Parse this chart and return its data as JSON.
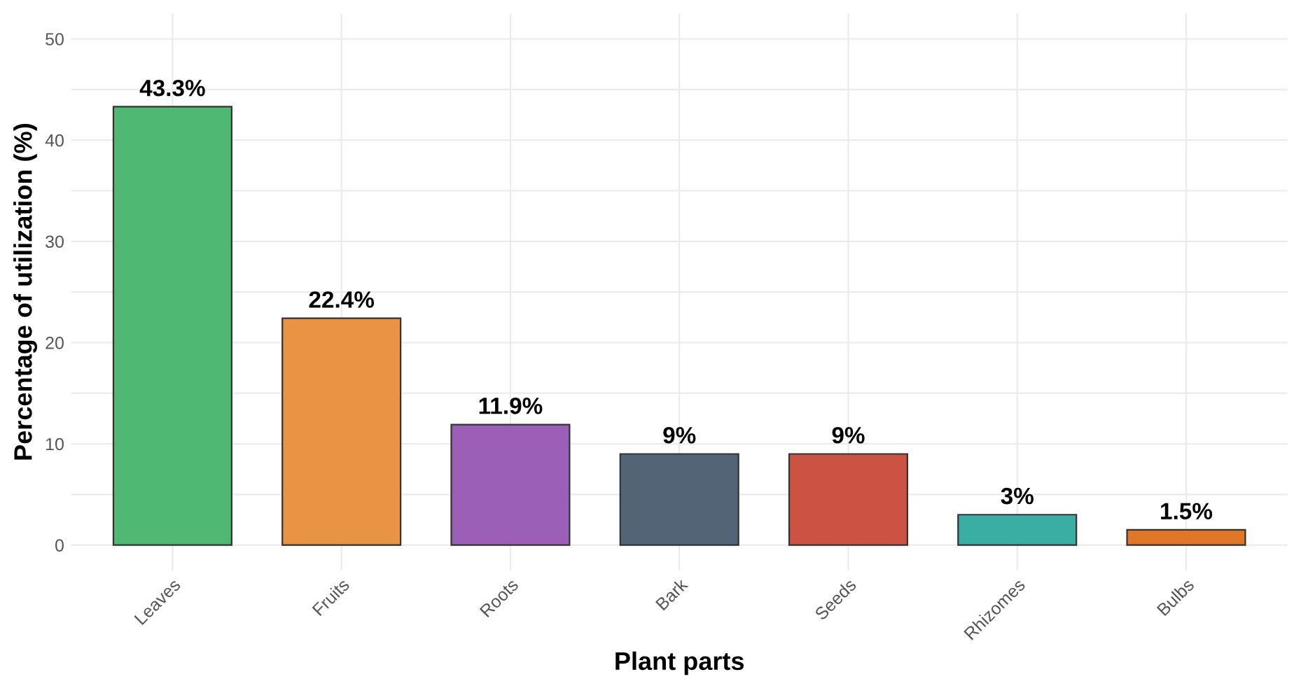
{
  "chart_data": {
    "type": "bar",
    "xlabel": "Plant parts",
    "ylabel": "Percentage of utilization (%)",
    "categories": [
      "Leaves",
      "Fruits",
      "Roots",
      "Bark",
      "Seeds",
      "Rhizomes",
      "Bulbs"
    ],
    "values": [
      43.3,
      22.4,
      11.9,
      9,
      9,
      3,
      1.5
    ],
    "value_labels": [
      "43.3%",
      "22.4%",
      "11.9%",
      "9%",
      "9%",
      "3%",
      "1.5%"
    ],
    "colors": [
      "#4fb973",
      "#e89444",
      "#9b5fb8",
      "#526476",
      "#cc5343",
      "#3aaea3",
      "#e07628"
    ],
    "ylim": [
      -2.5,
      52.5
    ],
    "yticks": [
      0,
      {
        "value": 5,
        "label": null
      },
      10,
      {
        "value": 15,
        "label": null
      },
      20,
      {
        "value": 25,
        "label": null
      },
      30,
      {
        "value": 35,
        "label": null
      },
      40,
      {
        "value": 45,
        "label": null
      },
      50
    ],
    "grid": true
  }
}
